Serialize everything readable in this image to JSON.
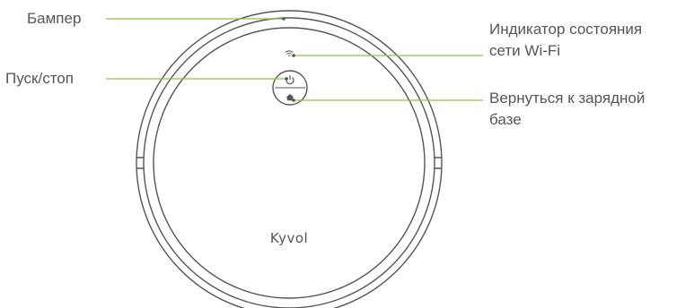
{
  "callouts": {
    "bumper": "Бампер",
    "start_stop": "Пуск/стоп",
    "wifi_indicator": [
      "Индикатор состояния",
      "сети Wi-Fi"
    ],
    "return_to_base": [
      "Вернуться к зарядной",
      "базе"
    ]
  },
  "device": {
    "brand_logo": "Kyvol"
  },
  "icons": {
    "power": "power-icon",
    "wifi": "wifi-icon",
    "home": "home-icon"
  },
  "colors": {
    "leader_line": "#8cc63f",
    "outline": "#555555",
    "label_text": "#555555"
  }
}
